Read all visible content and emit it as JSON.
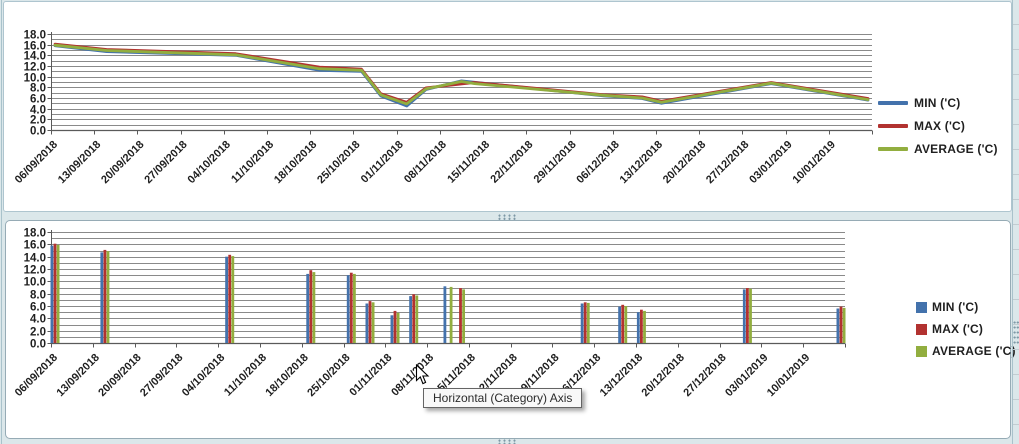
{
  "ui": {
    "tooltip": {
      "text": "Horizontal (Category) Axis"
    },
    "cursor": "arrow-pointer",
    "selection_handles": "dotted-resize-grips",
    "colors": {
      "worksheet_band": "#dbe7ea",
      "top_chart_border": "#aec5cf",
      "bottom_chart_border": "#96abb5",
      "gridline": "#8a8a8a",
      "axis_line": "#5a5a5a",
      "axis_text": "#1f1f1f",
      "tooltip_bg": "#f8f8f8",
      "tooltip_border": "#646464",
      "series_min": "#4372AC",
      "series_max": "#B23230",
      "series_average": "#92AE3F"
    }
  },
  "chart_data": [
    {
      "type": "line",
      "title": "",
      "xlabel": "",
      "ylabel": "",
      "ylim": [
        0,
        18
      ],
      "y_major_step": 2,
      "y_minor_step": 1,
      "grid": "horizontal-every-1",
      "legend_position": "right",
      "x_unit": "days_since_first_label",
      "x_span_days": 126,
      "y_tick_labels": [
        "18.0",
        "16.0",
        "14.0",
        "12.0",
        "10.0",
        "8.0",
        "6.0",
        "4.0",
        "2.0",
        "0.0"
      ],
      "x_tick_labels": [
        "06/09/2018",
        "13/09/2018",
        "20/09/2018",
        "27/09/2018",
        "04/10/2018",
        "11/10/2018",
        "18/10/2018",
        "25/10/2018",
        "01/11/2018",
        "08/11/2018",
        "15/11/2018",
        "22/11/2018",
        "29/11/2018",
        "06/12/2018",
        "13/12/2018",
        "20/12/2018",
        "27/12/2018",
        "03/01/2019",
        "10/01/2019"
      ],
      "series": [
        {
          "name": "MIN ('C)",
          "color": "#4372AC",
          "points": [
            [
              0,
              15.8
            ],
            [
              8,
              14.7
            ],
            [
              28,
              14.0
            ],
            [
              41,
              11.2
            ],
            [
              47.5,
              11.0
            ],
            [
              50.5,
              6.4
            ],
            [
              54.5,
              4.5
            ],
            [
              57.5,
              7.6
            ],
            [
              63,
              9.2
            ],
            [
              85,
              6.4
            ],
            [
              91,
              5.9
            ],
            [
              94,
              5.0
            ],
            [
              111,
              8.7
            ],
            [
              126,
              5.6
            ]
          ]
        },
        {
          "name": "MAX ('C)",
          "color": "#B23230",
          "points": [
            [
              0,
              16.1
            ],
            [
              8,
              15.1
            ],
            [
              28,
              14.3
            ],
            [
              41,
              11.8
            ],
            [
              47.5,
              11.4
            ],
            [
              50.5,
              6.8
            ],
            [
              54.5,
              5.2
            ],
            [
              57.5,
              7.9
            ],
            [
              65,
              8.9
            ],
            [
              85,
              6.6
            ],
            [
              91,
              6.2
            ],
            [
              94,
              5.4
            ],
            [
              111,
              8.9
            ],
            [
              126,
              5.9
            ]
          ]
        },
        {
          "name": "AVERAGE ('C)",
          "color": "#92AE3F",
          "points": [
            [
              0,
              15.9
            ],
            [
              8,
              14.9
            ],
            [
              28,
              14.1
            ],
            [
              41,
              11.5
            ],
            [
              47.5,
              11.2
            ],
            [
              50.5,
              6.6
            ],
            [
              54.5,
              4.9
            ],
            [
              57.5,
              7.7
            ],
            [
              63,
              9.1
            ],
            [
              65,
              8.7
            ],
            [
              85,
              6.5
            ],
            [
              91,
              6.0
            ],
            [
              94,
              5.2
            ],
            [
              111,
              8.8
            ],
            [
              126,
              5.7
            ]
          ]
        }
      ]
    },
    {
      "type": "bar",
      "title": "",
      "xlabel": "",
      "ylabel": "",
      "ylim": [
        0,
        18
      ],
      "y_major_step": 2,
      "y_minor_step": 1,
      "grid": "horizontal-every-1",
      "legend_position": "right",
      "x_unit": "days_since_first_label",
      "x_span_days": 126,
      "y_tick_labels": [
        "18.0",
        "16.0",
        "14.0",
        "12.0",
        "10.0",
        "8.0",
        "6.0",
        "4.0",
        "2.0",
        "0.0"
      ],
      "x_tick_labels": [
        "06/09/2018",
        "13/09/2018",
        "20/09/2018",
        "27/09/2018",
        "04/10/2018",
        "11/10/2018",
        "18/10/2018",
        "25/10/2018",
        "01/11/2018",
        "08/11/2018",
        "15/11/2018",
        "22/11/2018",
        "29/11/2018",
        "06/12/2018",
        "13/12/2018",
        "20/12/2018",
        "27/12/2018",
        "03/01/2019",
        "10/01/2019"
      ],
      "series": [
        {
          "name": "MIN ('C)",
          "color": "#4372AC",
          "points": [
            [
              0,
              15.8
            ],
            [
              8,
              14.7
            ],
            [
              28,
              14.0
            ],
            [
              41,
              11.2
            ],
            [
              47.5,
              11.0
            ],
            [
              50.5,
              6.4
            ],
            [
              54.5,
              4.5
            ],
            [
              57.5,
              7.6
            ],
            [
              63,
              9.2
            ],
            [
              85,
              6.4
            ],
            [
              91,
              5.9
            ],
            [
              94,
              5.0
            ],
            [
              111,
              8.7
            ],
            [
              126,
              5.6
            ]
          ]
        },
        {
          "name": "MAX ('C)",
          "color": "#B23230",
          "points": [
            [
              0,
              16.1
            ],
            [
              8,
              15.1
            ],
            [
              28,
              14.3
            ],
            [
              41,
              11.8
            ],
            [
              47.5,
              11.4
            ],
            [
              50.5,
              6.8
            ],
            [
              54.5,
              5.2
            ],
            [
              57.5,
              7.9
            ],
            [
              65,
              8.9
            ],
            [
              85,
              6.6
            ],
            [
              91,
              6.2
            ],
            [
              94,
              5.4
            ],
            [
              111,
              8.9
            ],
            [
              126,
              5.9
            ]
          ]
        },
        {
          "name": "AVERAGE ('C)",
          "color": "#92AE3F",
          "points": [
            [
              0,
              15.9
            ],
            [
              8,
              14.9
            ],
            [
              28,
              14.1
            ],
            [
              41,
              11.5
            ],
            [
              47.5,
              11.2
            ],
            [
              50.5,
              6.6
            ],
            [
              54.5,
              4.9
            ],
            [
              57.5,
              7.7
            ],
            [
              63,
              9.1
            ],
            [
              65,
              8.7
            ],
            [
              85,
              6.5
            ],
            [
              91,
              6.0
            ],
            [
              94,
              5.2
            ],
            [
              111,
              8.8
            ],
            [
              126,
              5.7
            ]
          ]
        }
      ]
    }
  ]
}
